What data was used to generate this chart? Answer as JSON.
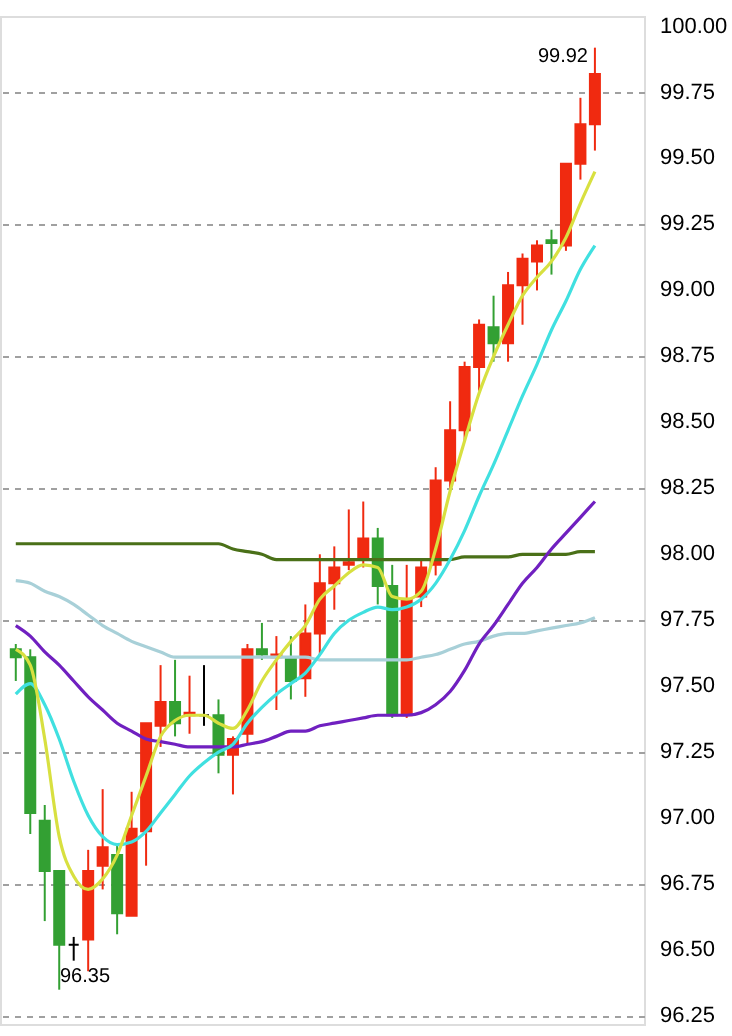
{
  "chart_data": {
    "type": "candlestick",
    "categories": [
      null,
      null,
      null,
      null,
      null,
      null,
      null,
      null,
      null,
      null,
      null,
      null,
      null,
      null,
      null,
      null,
      null,
      null,
      null,
      null,
      null,
      null,
      null,
      null,
      null,
      null,
      null,
      null,
      null,
      null,
      null,
      null,
      null,
      null,
      null,
      null,
      null,
      null,
      null,
      null,
      null
    ],
    "ohlc": [
      [
        97.64,
        97.66,
        97.52,
        97.61
      ],
      [
        97.61,
        97.64,
        96.94,
        97.02
      ],
      [
        96.99,
        97.05,
        96.61,
        96.8
      ],
      [
        96.8,
        96.8,
        96.35,
        96.52
      ],
      [
        96.52,
        96.55,
        96.46,
        96.52
      ],
      [
        96.54,
        96.88,
        96.42,
        96.8
      ],
      [
        96.82,
        97.11,
        96.73,
        96.89
      ],
      [
        96.86,
        96.9,
        96.56,
        96.64
      ],
      [
        96.63,
        97.1,
        96.63,
        96.96
      ],
      [
        96.95,
        97.36,
        96.82,
        97.36
      ],
      [
        97.35,
        97.58,
        97.27,
        97.44
      ],
      [
        97.44,
        97.6,
        97.31,
        97.36
      ],
      [
        97.39,
        97.54,
        97.32,
        97.4
      ],
      [
        97.39,
        97.58,
        97.35,
        97.39
      ],
      [
        97.39,
        97.45,
        97.17,
        97.24
      ],
      [
        97.24,
        97.31,
        97.09,
        97.3
      ],
      [
        97.32,
        97.66,
        97.28,
        97.64
      ],
      [
        97.64,
        97.74,
        97.6,
        97.62
      ],
      [
        97.61,
        97.69,
        97.41,
        97.62
      ],
      [
        97.61,
        97.69,
        97.45,
        97.52
      ],
      [
        97.53,
        97.81,
        97.46,
        97.7
      ],
      [
        97.7,
        98.0,
        97.62,
        97.89
      ],
      [
        97.89,
        98.03,
        97.79,
        97.95
      ],
      [
        97.96,
        98.17,
        97.94,
        97.97
      ],
      [
        97.98,
        98.2,
        97.95,
        98.06
      ],
      [
        98.06,
        98.1,
        97.81,
        97.88
      ],
      [
        97.88,
        97.96,
        97.38,
        97.39
      ],
      [
        97.39,
        97.96,
        97.38,
        97.83
      ],
      [
        97.84,
        97.98,
        97.8,
        97.95
      ],
      [
        97.96,
        98.33,
        97.92,
        98.28
      ],
      [
        98.28,
        98.58,
        98.24,
        98.47
      ],
      [
        98.47,
        98.73,
        98.43,
        98.71
      ],
      [
        98.71,
        98.89,
        98.62,
        98.87
      ],
      [
        98.86,
        98.98,
        98.73,
        98.8
      ],
      [
        98.8,
        99.07,
        98.73,
        99.02
      ],
      [
        99.02,
        99.14,
        98.87,
        99.12
      ],
      [
        99.11,
        99.19,
        99.0,
        99.17
      ],
      [
        99.19,
        99.23,
        99.06,
        99.18
      ],
      [
        99.17,
        99.48,
        99.15,
        99.48
      ],
      [
        99.48,
        99.73,
        99.42,
        99.63
      ],
      [
        99.63,
        99.92,
        99.53,
        99.82
      ]
    ],
    "colors": [
      "#33a033",
      "#33a033",
      "#33a033",
      "#33a033",
      "#000000",
      "#f02a10",
      "#f02a10",
      "#33a033",
      "#f02a10",
      "#f02a10",
      "#f02a10",
      "#33a033",
      "#f02a10",
      "#000000",
      "#33a033",
      "#f02a10",
      "#f02a10",
      "#33a033",
      "#f02a10",
      "#33a033",
      "#f02a10",
      "#f02a10",
      "#f02a10",
      "#f02a10",
      "#f02a10",
      "#33a033",
      "#33a033",
      "#f02a10",
      "#f02a10",
      "#f02a10",
      "#f02a10",
      "#f02a10",
      "#f02a10",
      "#33a033",
      "#f02a10",
      "#f02a10",
      "#f02a10",
      "#33a033",
      "#f02a10",
      "#f02a10",
      "#f02a10"
    ],
    "series": [
      {
        "type": "line",
        "color": "#4a7018",
        "values": [
          98.04,
          98.04,
          98.04,
          98.04,
          98.04,
          98.04,
          98.04,
          98.04,
          98.04,
          98.04,
          98.04,
          98.04,
          98.04,
          98.04,
          98.04,
          98.02,
          98.01,
          98.0,
          97.98,
          97.98,
          97.98,
          97.98,
          97.98,
          97.98,
          97.98,
          97.98,
          97.98,
          97.98,
          97.98,
          97.98,
          97.98,
          97.99,
          97.99,
          97.99,
          97.99,
          98.0,
          98.0,
          98.0,
          98.0,
          98.01,
          98.01
        ]
      },
      {
        "type": "line",
        "color": "#a8d0d8",
        "values": [
          97.9,
          97.89,
          97.86,
          97.84,
          97.81,
          97.77,
          97.73,
          97.7,
          97.67,
          97.65,
          97.63,
          97.61,
          97.61,
          97.61,
          97.61,
          97.61,
          97.61,
          97.61,
          97.61,
          97.61,
          97.61,
          97.6,
          97.6,
          97.6,
          97.6,
          97.6,
          97.6,
          97.6,
          97.61,
          97.62,
          97.64,
          97.66,
          97.67,
          97.69,
          97.7,
          97.7,
          97.71,
          97.72,
          97.73,
          97.74,
          97.76
        ]
      },
      {
        "type": "line",
        "color": "#7020c0",
        "values": [
          97.73,
          97.69,
          97.63,
          97.58,
          97.52,
          97.46,
          97.41,
          97.36,
          97.33,
          97.3,
          97.29,
          97.28,
          97.27,
          97.27,
          97.27,
          97.27,
          97.28,
          97.29,
          97.31,
          97.33,
          97.33,
          97.35,
          97.36,
          97.37,
          97.38,
          97.39,
          97.39,
          97.39,
          97.4,
          97.43,
          97.48,
          97.56,
          97.66,
          97.73,
          97.81,
          97.89,
          97.95,
          98.02,
          98.08,
          98.14,
          98.2
        ]
      },
      {
        "type": "line",
        "color": "#40e0e0",
        "values": [
          97.47,
          97.51,
          97.43,
          97.3,
          97.14,
          97.01,
          96.93,
          96.9,
          96.91,
          96.95,
          97.02,
          97.09,
          97.16,
          97.21,
          97.25,
          97.28,
          97.36,
          97.42,
          97.47,
          97.51,
          97.55,
          97.62,
          97.7,
          97.75,
          97.78,
          97.8,
          97.79,
          97.8,
          97.83,
          97.89,
          97.98,
          98.09,
          98.22,
          98.34,
          98.47,
          98.6,
          98.72,
          98.85,
          98.96,
          99.08,
          99.17
        ]
      },
      {
        "type": "line",
        "color": "#d8e040",
        "values": [
          97.64,
          97.58,
          97.3,
          96.93,
          96.78,
          96.73,
          96.77,
          96.86,
          97.01,
          97.16,
          97.31,
          97.37,
          97.39,
          97.39,
          97.36,
          97.34,
          97.41,
          97.52,
          97.6,
          97.67,
          97.73,
          97.83,
          97.88,
          97.93,
          97.96,
          97.95,
          97.84,
          97.83,
          97.86,
          98.02,
          98.24,
          98.43,
          98.61,
          98.75,
          98.87,
          98.98,
          99.05,
          99.11,
          99.2,
          99.33,
          99.45
        ]
      }
    ],
    "ylim": [
      96.22,
      100.04
    ],
    "yticks": [
      {
        "value": 96.25,
        "label": "96.25"
      },
      {
        "value": 96.5,
        "label": "96.50"
      },
      {
        "value": 96.75,
        "label": "96.75"
      },
      {
        "value": 97,
        "label": "97.00"
      },
      {
        "value": 97.25,
        "label": "97.25"
      },
      {
        "value": 97.5,
        "label": "97.50"
      },
      {
        "value": 97.75,
        "label": "97.75"
      },
      {
        "value": 98,
        "label": "98.00"
      },
      {
        "value": 98.25,
        "label": "98.25"
      },
      {
        "value": 98.5,
        "label": "98.50"
      },
      {
        "value": 98.75,
        "label": "98.75"
      },
      {
        "value": 99,
        "label": "99.00"
      },
      {
        "value": 99.25,
        "label": "99.25"
      },
      {
        "value": 99.5,
        "label": "99.50"
      },
      {
        "value": 99.75,
        "label": "99.75"
      },
      {
        "value": 100,
        "label": "100.00"
      }
    ],
    "annotations": [
      "99.92",
      "96.35"
    ],
    "grid": "y",
    "tick_labels": "y"
  }
}
